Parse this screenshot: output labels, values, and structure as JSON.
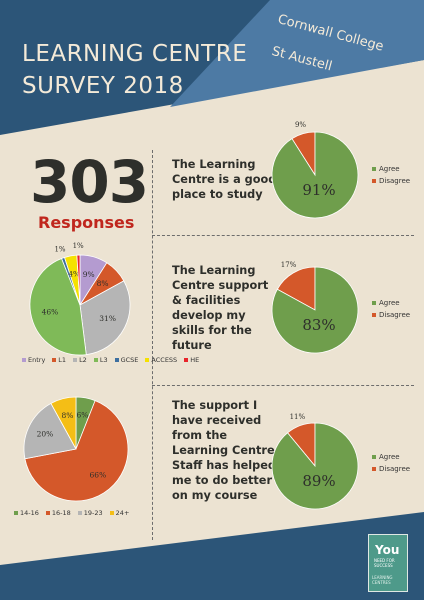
{
  "header": {
    "title_line1": "LEARNING CENTRE",
    "title_line2": "SURVEY 2018",
    "college_line1": "Cornwall College",
    "college_line2": "St Austell"
  },
  "summary": {
    "count": "303",
    "label": "Responses"
  },
  "colors": {
    "navy": "#2c5578",
    "steel": "#4d7aa4",
    "cream": "#ece3d2",
    "agree": "#6f9e4c",
    "disagree": "#d4582a"
  },
  "logo": {
    "main": "You",
    "sub": "NEED FOR SUCCESS",
    "caption": "LEARNING CENTRES"
  },
  "chart_data": [
    {
      "type": "pie",
      "id": "level",
      "categories": [
        "Entry",
        "L1",
        "L2",
        "L3",
        "GCSE",
        "ACCESS",
        "HE"
      ],
      "values": [
        9,
        8,
        31,
        46,
        1,
        4,
        1
      ],
      "labels": [
        "9%",
        "8%",
        "31%",
        "46%",
        "1%",
        "4%",
        "1%"
      ],
      "colors": [
        "#b49bd0",
        "#d4582a",
        "#b5b5b5",
        "#7fba58",
        "#3d6fa0",
        "#f5e100",
        "#e8242a"
      ],
      "legend_position": "bottom"
    },
    {
      "type": "pie",
      "id": "age",
      "categories": [
        "14-16",
        "16-18",
        "19-23",
        "24+"
      ],
      "values": [
        6,
        66,
        20,
        8
      ],
      "labels": [
        "6%",
        "66%",
        "20%",
        "8%"
      ],
      "colors": [
        "#6f9e4c",
        "#d4582a",
        "#b5b5b5",
        "#f4be16"
      ],
      "legend_position": "bottom"
    },
    {
      "type": "pie",
      "id": "good_place",
      "statement": "The Learning Centre is a good place to study",
      "categories": [
        "Agree",
        "Disagree"
      ],
      "values": [
        91,
        9
      ],
      "labels": [
        "91%",
        "9%"
      ],
      "colors": [
        "#6f9e4c",
        "#d4582a"
      ],
      "legend_position": "right"
    },
    {
      "type": "pie",
      "id": "skills",
      "statement": "The Learning Centre support & facilities develop my skills for the future",
      "categories": [
        "Agree",
        "Disagree"
      ],
      "values": [
        83,
        17
      ],
      "labels": [
        "83%",
        "17%"
      ],
      "colors": [
        "#6f9e4c",
        "#d4582a"
      ],
      "legend_position": "right"
    },
    {
      "type": "pie",
      "id": "support",
      "statement": "The support I have received from the Learning Centre Staff has helped me to do better on my course",
      "categories": [
        "Agree",
        "Disagree"
      ],
      "values": [
        89,
        11
      ],
      "labels": [
        "89%",
        "11%"
      ],
      "colors": [
        "#6f9e4c",
        "#d4582a"
      ],
      "legend_position": "right"
    }
  ]
}
